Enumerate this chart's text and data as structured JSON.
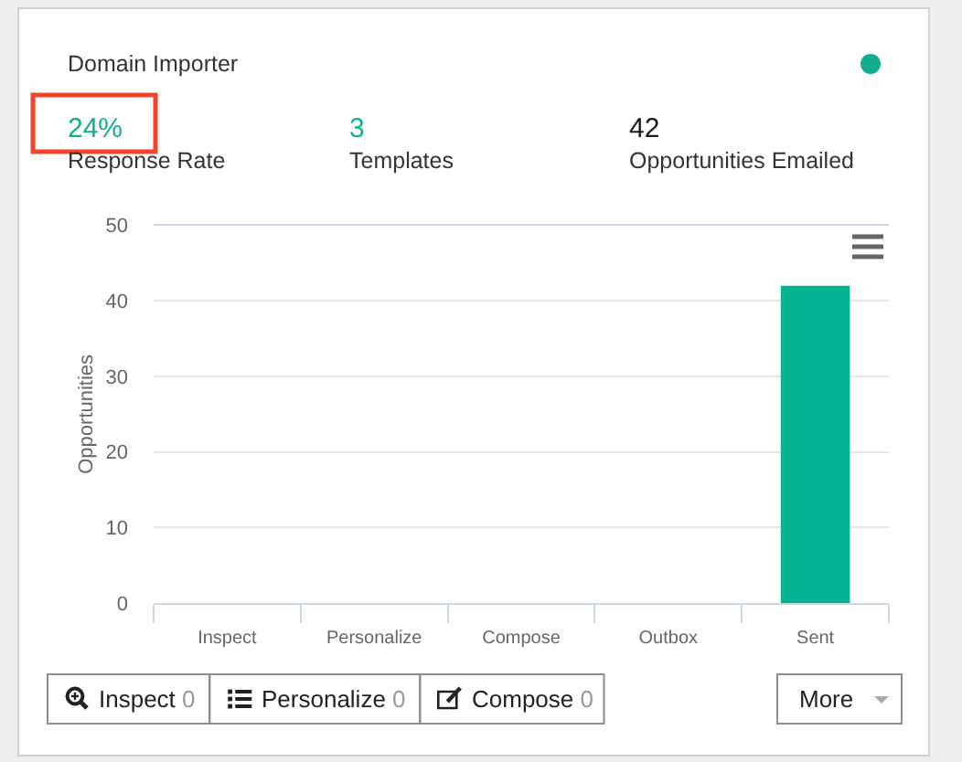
{
  "chart_data": [
    {
      "type": "other",
      "title": "Domain Importer",
      "categories": [
        "Response Rate",
        "Templates",
        "Opportunities Emailed"
      ],
      "values": [
        24,
        3,
        42
      ],
      "value_labels": [
        "24%",
        "3",
        "42"
      ],
      "colors": [
        "#10b08e",
        "#10b08e",
        "#1a1a1a"
      ]
    },
    {
      "type": "bar",
      "categories": [
        "Inspect",
        "Personalize",
        "Compose",
        "Outbox",
        "Sent"
      ],
      "values": [
        0,
        0,
        0,
        0,
        42
      ],
      "color": "#05b391",
      "ylabel": "Opportunities",
      "ylim": [
        0,
        50
      ],
      "yticks": [
        0,
        10,
        20,
        30,
        40,
        50
      ],
      "grid": "y"
    },
    {
      "type": "other",
      "categories": [
        "Inspect",
        "Personalize",
        "Compose",
        "More"
      ],
      "values": [
        0,
        0,
        0,
        null
      ],
      "data_labels": true
    }
  ]
}
